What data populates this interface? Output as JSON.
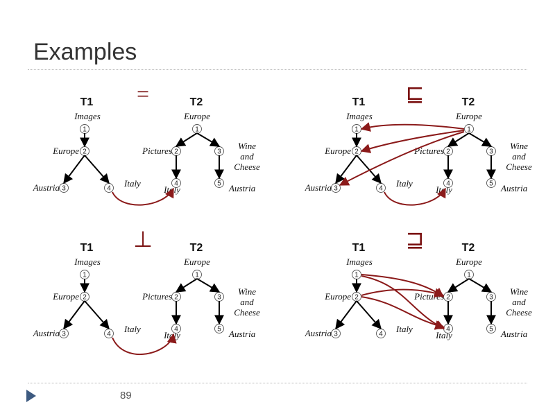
{
  "slide": {
    "title": "Examples",
    "page_number": "89"
  },
  "colors": {
    "tree_edge": "#000000",
    "match_arrow": "#8b1a1a",
    "operator": "#7a1010",
    "rule": "#b8b8b8",
    "bullet": "#3d5a80"
  },
  "icons": [
    "bullet-arrow-icon"
  ],
  "panels": [
    {
      "id": "equal",
      "operator": "=",
      "t1": {
        "title": "T1",
        "nodes": [
          {
            "id": "1",
            "label": "Images"
          },
          {
            "id": "2",
            "label": "Europe"
          },
          {
            "id": "3",
            "label": "Austria"
          },
          {
            "id": "4",
            "label": "Italy"
          }
        ]
      },
      "t2": {
        "title": "T2",
        "nodes": [
          {
            "id": "1",
            "label": "Europe"
          },
          {
            "id": "2",
            "label": "Pictures"
          },
          {
            "id": "3",
            "label": "Wine and Cheese"
          },
          {
            "id": "4",
            "label": "Italy"
          },
          {
            "id": "5",
            "label": "Austria"
          }
        ]
      }
    },
    {
      "id": "subset",
      "operator": "⊑",
      "t1": {
        "title": "T1",
        "nodes": [
          {
            "id": "1",
            "label": "Images"
          },
          {
            "id": "2",
            "label": "Europe"
          },
          {
            "id": "3",
            "label": "Austria"
          },
          {
            "id": "4",
            "label": "Italy"
          }
        ]
      },
      "t2": {
        "title": "T2",
        "nodes": [
          {
            "id": "1",
            "label": "Europe"
          },
          {
            "id": "2",
            "label": "Pictures"
          },
          {
            "id": "3",
            "label": "Wine and Cheese"
          },
          {
            "id": "4",
            "label": "Italy"
          },
          {
            "id": "5",
            "label": "Austria"
          }
        ]
      }
    },
    {
      "id": "disjoint",
      "operator": "⊥",
      "t1": {
        "title": "T1",
        "nodes": [
          {
            "id": "1",
            "label": "Images"
          },
          {
            "id": "2",
            "label": "Europe"
          },
          {
            "id": "3",
            "label": "Austria"
          },
          {
            "id": "4",
            "label": "Italy"
          }
        ]
      },
      "t2": {
        "title": "T2",
        "nodes": [
          {
            "id": "1",
            "label": "Europe"
          },
          {
            "id": "2",
            "label": "Pictures"
          },
          {
            "id": "3",
            "label": "Wine and Cheese"
          },
          {
            "id": "4",
            "label": "Italy"
          },
          {
            "id": "5",
            "label": "Austria"
          }
        ]
      }
    },
    {
      "id": "superset",
      "operator": "⊒",
      "t1": {
        "title": "T1",
        "nodes": [
          {
            "id": "1",
            "label": "Images"
          },
          {
            "id": "2",
            "label": "Europe"
          },
          {
            "id": "3",
            "label": "Austria"
          },
          {
            "id": "4",
            "label": "Italy"
          }
        ]
      },
      "t2": {
        "title": "T2",
        "nodes": [
          {
            "id": "1",
            "label": "Europe"
          },
          {
            "id": "2",
            "label": "Pictures"
          },
          {
            "id": "3",
            "label": "Wine and Cheese"
          },
          {
            "id": "4",
            "label": "Italy"
          },
          {
            "id": "5",
            "label": "Austria"
          }
        ]
      }
    }
  ]
}
